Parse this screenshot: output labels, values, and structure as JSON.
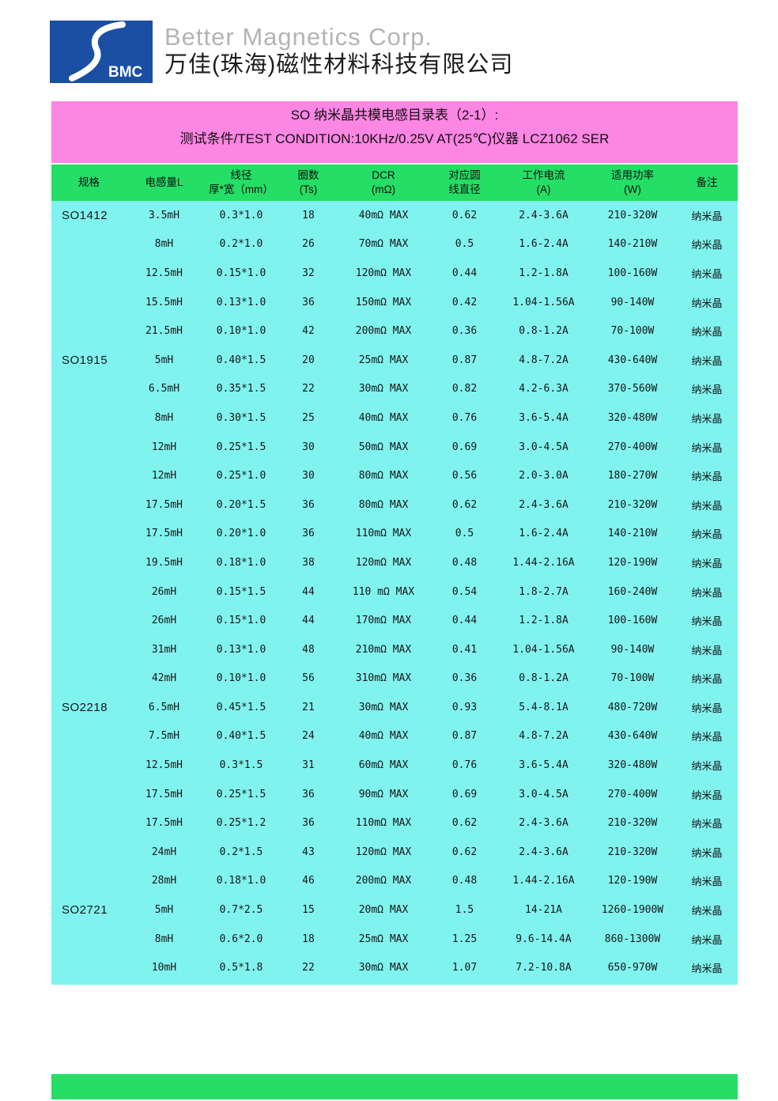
{
  "header": {
    "logo_text": "BMC",
    "logo_color": "#1b4fa3",
    "company_en": "Better Magnetics Corp.",
    "company_zh": "万佳(珠海)磁性材料科技有限公司"
  },
  "title_band": {
    "background": "#fb86e3",
    "line1": "SO 纳米晶共模电感目录表（2-1）:",
    "line2": "测试条件/TEST CONDITION:10KHz/0.25V AT(25℃)仪器 LCZ1062 SER"
  },
  "table": {
    "header_background": "#24de66",
    "body_background": "#80f3ef",
    "columns": [
      "规格",
      "电感量L",
      "线径\n厚*宽（mm）",
      "圈数\n(Ts)",
      "DCR\n(mΩ)",
      "对应圆\n线直径",
      "工作电流\n(A)",
      "适用功率\n(W)",
      "备注"
    ],
    "groups": [
      {
        "spec": "SO1412",
        "rows": [
          [
            "3.5mH",
            "0.3*1.0",
            "18",
            "40mΩ MAX",
            "0.62",
            "2.4-3.6A",
            "210-320W",
            "纳米晶"
          ],
          [
            "8mH",
            "0.2*1.0",
            "26",
            "70mΩ MAX",
            "0.5",
            "1.6-2.4A",
            "140-210W",
            "纳米晶"
          ],
          [
            "12.5mH",
            "0.15*1.0",
            "32",
            "120mΩ MAX",
            "0.44",
            "1.2-1.8A",
            "100-160W",
            "纳米晶"
          ],
          [
            "15.5mH",
            "0.13*1.0",
            "36",
            "150mΩ MAX",
            "0.42",
            "1.04-1.56A",
            "90-140W",
            "纳米晶"
          ],
          [
            "21.5mH",
            "0.10*1.0",
            "42",
            "200mΩ MAX",
            "0.36",
            "0.8-1.2A",
            "70-100W",
            "纳米晶"
          ]
        ]
      },
      {
        "spec": "SO1915",
        "rows": [
          [
            "5mH",
            "0.40*1.5",
            "20",
            "25mΩ MAX",
            "0.87",
            "4.8-7.2A",
            "430-640W",
            "纳米晶"
          ],
          [
            "6.5mH",
            "0.35*1.5",
            "22",
            "30mΩ MAX",
            "0.82",
            "4.2-6.3A",
            "370-560W",
            "纳米晶"
          ],
          [
            "8mH",
            "0.30*1.5",
            "25",
            "40mΩ MAX",
            "0.76",
            "3.6-5.4A",
            "320-480W",
            "纳米晶"
          ],
          [
            "12mH",
            "0.25*1.5",
            "30",
            "50mΩ MAX",
            "0.69",
            "3.0-4.5A",
            "270-400W",
            "纳米晶"
          ],
          [
            "12mH",
            "0.25*1.0",
            "30",
            "80mΩ MAX",
            "0.56",
            "2.0-3.0A",
            "180-270W",
            "纳米晶"
          ],
          [
            "17.5mH",
            "0.20*1.5",
            "36",
            "80mΩ MAX",
            "0.62",
            "2.4-3.6A",
            "210-320W",
            "纳米晶"
          ],
          [
            "17.5mH",
            "0.20*1.0",
            "36",
            "110mΩ MAX",
            "0.5",
            "1.6-2.4A",
            "140-210W",
            "纳米晶"
          ],
          [
            "19.5mH",
            "0.18*1.0",
            "38",
            "120mΩ MAX",
            "0.48",
            "1.44-2.16A",
            "120-190W",
            "纳米晶"
          ],
          [
            "26mH",
            "0.15*1.5",
            "44",
            "110 mΩ MAX",
            "0.54",
            "1.8-2.7A",
            "160-240W",
            "纳米晶"
          ],
          [
            "26mH",
            "0.15*1.0",
            "44",
            "170mΩ MAX",
            "0.44",
            "1.2-1.8A",
            "100-160W",
            "纳米晶"
          ],
          [
            "31mH",
            "0.13*1.0",
            "48",
            "210mΩ MAX",
            "0.41",
            "1.04-1.56A",
            "90-140W",
            "纳米晶"
          ],
          [
            "42mH",
            "0.10*1.0",
            "56",
            "310mΩ MAX",
            "0.36",
            "0.8-1.2A",
            "70-100W",
            "纳米晶"
          ]
        ]
      },
      {
        "spec": "SO2218",
        "rows": [
          [
            "6.5mH",
            "0.45*1.5",
            "21",
            "30mΩ MAX",
            "0.93",
            "5.4-8.1A",
            "480-720W",
            "纳米晶"
          ],
          [
            "7.5mH",
            "0.40*1.5",
            "24",
            "40mΩ MAX",
            "0.87",
            "4.8-7.2A",
            "430-640W",
            "纳米晶"
          ],
          [
            "12.5mH",
            "0.3*1.5",
            "31",
            "60mΩ MAX",
            "0.76",
            "3.6-5.4A",
            "320-480W",
            "纳米晶"
          ],
          [
            "17.5mH",
            "0.25*1.5",
            "36",
            "90mΩ MAX",
            "0.69",
            "3.0-4.5A",
            "270-400W",
            "纳米晶"
          ],
          [
            "17.5mH",
            "0.25*1.2",
            "36",
            "110mΩ MAX",
            "0.62",
            "2.4-3.6A",
            "210-320W",
            "纳米晶"
          ],
          [
            "24mH",
            "0.2*1.5",
            "43",
            "120mΩ MAX",
            "0.62",
            "2.4-3.6A",
            "210-320W",
            "纳米晶"
          ],
          [
            "28mH",
            "0.18*1.0",
            "46",
            "200mΩ MAX",
            "0.48",
            "1.44-2.16A",
            "120-190W",
            "纳米晶"
          ]
        ]
      },
      {
        "spec": "SO2721",
        "rows": [
          [
            "5mH",
            "0.7*2.5",
            "15",
            "20mΩ MAX",
            "1.5",
            "14-21A",
            "1260-1900W",
            "纳米晶"
          ],
          [
            "8mH",
            "0.6*2.0",
            "18",
            "25mΩ MAX",
            "1.25",
            "9.6-14.4A",
            "860-1300W",
            "纳米晶"
          ],
          [
            "10mH",
            "0.5*1.8",
            "22",
            "30mΩ MAX",
            "1.07",
            "7.2-10.8A",
            "650-970W",
            "纳米晶"
          ]
        ]
      }
    ]
  },
  "footer": {
    "bar_color": "#24de66"
  }
}
